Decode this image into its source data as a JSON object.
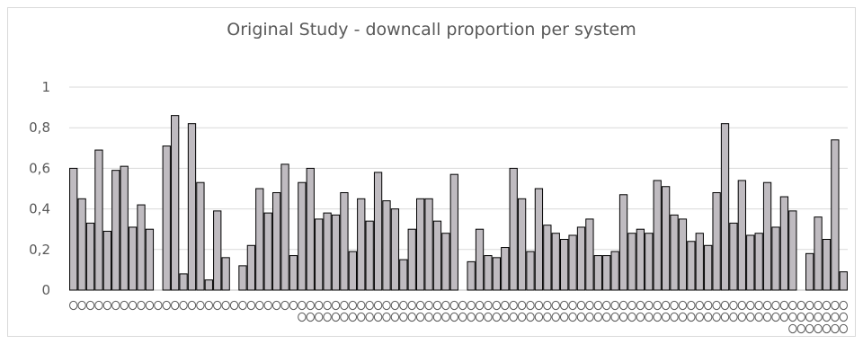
{
  "chart_data": {
    "type": "bar",
    "title": "Original Study - downcall proportion per system",
    "xlabel": "",
    "ylabel": "",
    "ylim": [
      0,
      1
    ],
    "yticks": [
      "0",
      "0,2",
      "0,4",
      "0,6",
      "0,8",
      "1"
    ],
    "ytick_values": [
      0,
      0.2,
      0.4,
      0.6,
      0.8,
      1
    ],
    "grid": true,
    "legend": "none",
    "bar_color": "#bfbbc0",
    "values": [
      0.6,
      0.45,
      0.33,
      0.69,
      0.29,
      0.59,
      0.61,
      0.31,
      0.42,
      0.3,
      0,
      0.71,
      0.86,
      0.08,
      0.82,
      0.53,
      0.05,
      0.39,
      0.16,
      0,
      0.12,
      0.22,
      0.5,
      0.38,
      0.48,
      0.62,
      0.17,
      0.53,
      0.6,
      0.35,
      0.38,
      0.37,
      0.48,
      0.19,
      0.45,
      0.34,
      0.58,
      0.44,
      0.4,
      0.15,
      0.3,
      0.45,
      0.45,
      0.34,
      0.28,
      0.57,
      0,
      0.14,
      0.3,
      0.17,
      0.16,
      0.21,
      0.6,
      0.45,
      0.19,
      0.5,
      0.32,
      0.28,
      0.25,
      0.27,
      0.31,
      0.35,
      0.17,
      0.17,
      0.19,
      0.47,
      0.28,
      0.3,
      0.28,
      0.54,
      0.51,
      0.37,
      0.35,
      0.24,
      0.28,
      0.22,
      0.48,
      0.82,
      0.33,
      0.54,
      0.27,
      0.28,
      0.53,
      0.31,
      0.46,
      0.39,
      0,
      0.18,
      0.36,
      0.25,
      0.74,
      0.09
    ]
  }
}
